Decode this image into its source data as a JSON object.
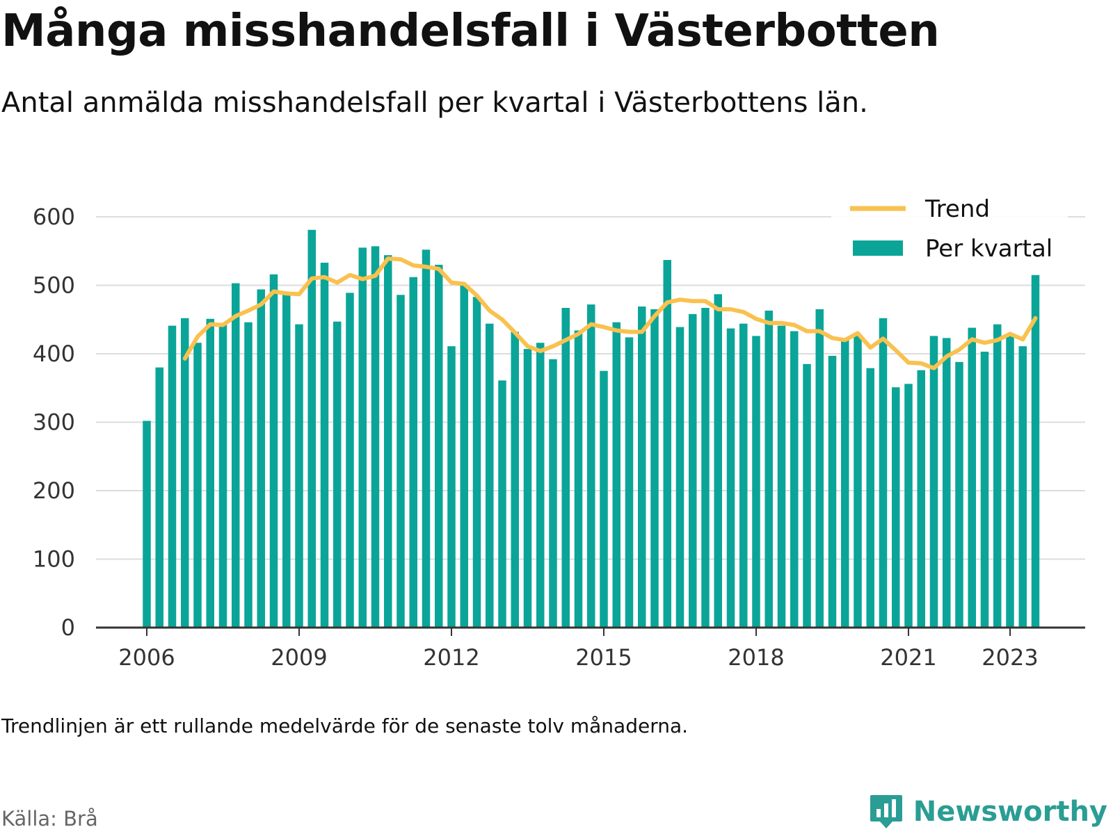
{
  "header": {
    "title": "Många misshandelsfall i Västerbotten",
    "subtitle": "Antal anmälda misshandelsfall per kvartal i Västerbottens län."
  },
  "footer": {
    "note": "Trendlinjen är ett rullande medelvärde för de senaste tolv månaderna.",
    "source": "Källa: Brå",
    "brand": "Newsworthy"
  },
  "colors": {
    "bar": "#0aa598",
    "trend": "#f9c14f",
    "grid": "#dddddd",
    "axis": "#333333",
    "brand": "#2a9d94"
  },
  "chart_data": {
    "type": "bar",
    "title": "",
    "xlabel": "",
    "ylabel": "",
    "ylim": [
      0,
      600
    ],
    "yticks": [
      0,
      100,
      200,
      300,
      400,
      500,
      600
    ],
    "xticks": [
      "2006",
      "2009",
      "2012",
      "2015",
      "2018",
      "2021",
      "2023"
    ],
    "x_start": "2006 Q1",
    "grid": "horizontal",
    "legend_position": "top-right",
    "series": [
      {
        "name": "Per kvartal",
        "kind": "bar",
        "values": [
          302,
          380,
          441,
          452,
          416,
          451,
          442,
          503,
          446,
          494,
          516,
          490,
          443,
          581,
          533,
          447,
          489,
          555,
          557,
          544,
          486,
          512,
          552,
          530,
          411,
          500,
          483,
          444,
          361,
          432,
          407,
          416,
          392,
          467,
          434,
          472,
          375,
          446,
          424,
          469,
          465,
          537,
          439,
          458,
          467,
          487,
          437,
          444,
          426,
          463,
          441,
          433,
          385,
          465,
          397,
          421,
          428,
          379,
          452,
          351,
          356,
          376,
          426,
          423,
          388,
          438,
          403,
          443,
          426,
          411,
          515
        ]
      },
      {
        "name": "Trend",
        "kind": "line",
        "values": [
          null,
          null,
          null,
          393,
          425,
          443,
          442,
          455,
          463,
          472,
          491,
          488,
          487,
          510,
          512,
          504,
          515,
          509,
          514,
          539,
          538,
          529,
          527,
          524,
          504,
          502,
          485,
          463,
          450,
          431,
          411,
          404,
          411,
          420,
          429,
          443,
          439,
          434,
          432,
          432,
          455,
          475,
          479,
          477,
          477,
          465,
          465,
          461,
          451,
          445,
          445,
          442,
          433,
          433,
          423,
          420,
          430,
          409,
          422,
          405,
          387,
          386,
          379,
          396,
          406,
          421,
          416,
          420,
          429,
          421,
          452
        ]
      }
    ]
  }
}
